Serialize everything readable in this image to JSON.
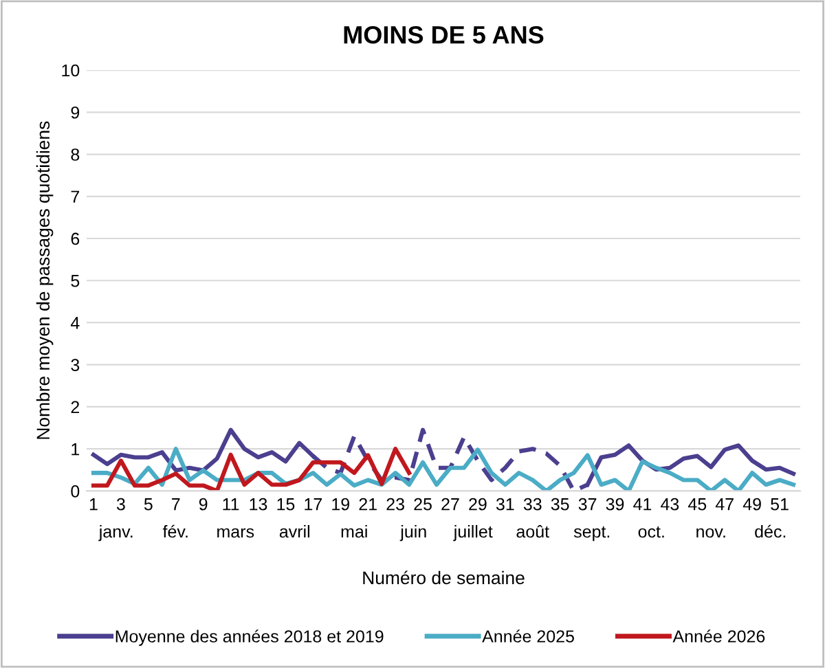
{
  "chart_data": {
    "type": "line",
    "title": "MOINS DE 5 ANS",
    "xlabel": "Numéro de semaine",
    "ylabel": "Nombre moyen de passages quotidiens",
    "x": [
      1,
      2,
      3,
      4,
      5,
      6,
      7,
      8,
      9,
      10,
      11,
      12,
      13,
      14,
      15,
      16,
      17,
      18,
      19,
      20,
      21,
      22,
      23,
      24,
      25,
      26,
      27,
      28,
      29,
      30,
      31,
      32,
      33,
      34,
      35,
      36,
      37,
      38,
      39,
      40,
      41,
      42,
      43,
      44,
      45,
      46,
      47,
      48,
      49,
      50,
      51,
      52
    ],
    "xlim": [
      0.5,
      52.5
    ],
    "xticks": [
      1,
      3,
      5,
      7,
      9,
      11,
      13,
      15,
      17,
      19,
      21,
      23,
      25,
      27,
      29,
      31,
      33,
      35,
      37,
      39,
      41,
      43,
      45,
      47,
      49,
      51
    ],
    "ylim": [
      0,
      10
    ],
    "yticks": [
      0,
      1,
      2,
      3,
      4,
      5,
      6,
      7,
      8,
      9,
      10
    ],
    "grid": "y",
    "legend": "bottom",
    "marker": "none",
    "series": [
      {
        "name": "Moyenne des années 2018 et 2019",
        "color": "#4b3f8f",
        "line_style": "solid",
        "values": [
          0.86,
          0.64,
          0.86,
          0.8,
          0.8,
          0.92,
          0.49,
          0.55,
          0.49,
          0.77,
          1.45,
          1.0,
          0.8,
          0.92,
          0.7,
          1.14,
          0.83,
          null,
          null,
          null,
          null,
          null,
          null,
          null,
          null,
          null,
          null,
          null,
          null,
          null,
          null,
          null,
          null,
          null,
          null,
          null,
          0.15,
          0.8,
          0.86,
          1.08,
          0.72,
          0.51,
          0.55,
          0.77,
          0.83,
          0.57,
          0.98,
          1.08,
          0.72,
          0.51,
          0.55,
          0.41
        ]
      },
      {
        "color": "#4b3f8f",
        "line_style": "dashed",
        "values": [
          null,
          null,
          null,
          null,
          null,
          null,
          null,
          null,
          null,
          null,
          null,
          null,
          null,
          null,
          null,
          null,
          0.83,
          0.55,
          0.43,
          1.3,
          0.72,
          0.26,
          0.32,
          0.26,
          1.45,
          0.55,
          0.55,
          1.28,
          0.72,
          0.26,
          0.55,
          0.94,
          1.0,
          0.89,
          0.6,
          0,
          0.15,
          null,
          null,
          null,
          null,
          null,
          null,
          null,
          null,
          null,
          null,
          null,
          null,
          null,
          null,
          null
        ]
      },
      {
        "name": "Année 2025",
        "color": "#4bacc6",
        "line_style": "solid",
        "values": [
          0.43,
          0.43,
          0.32,
          0.17,
          0.55,
          0.15,
          1.0,
          0.26,
          0.49,
          0.26,
          0.26,
          0.26,
          0.43,
          0.43,
          0.17,
          0.26,
          0.43,
          0.15,
          0.4,
          0.13,
          0.26,
          0.15,
          0.43,
          0.15,
          0.68,
          0.15,
          0.55,
          0.55,
          0.98,
          0.43,
          0.15,
          0.43,
          0.26,
          0,
          0.26,
          0.43,
          0.85,
          0.15,
          0.26,
          0,
          0.7,
          0.55,
          0.43,
          0.26,
          0.26,
          0,
          0.26,
          0,
          0.43,
          0.15,
          0.26,
          0.15
        ]
      },
      {
        "name": "Année 2026",
        "color": "#c0181e",
        "line_style": "solid",
        "values": [
          0.13,
          0.13,
          0.72,
          0.13,
          0.13,
          0.26,
          0.41,
          0.13,
          0.13,
          0,
          0.86,
          0.15,
          0.43,
          0.15,
          0.15,
          0.26,
          0.68,
          0.68,
          0.68,
          0.43,
          0.85,
          0.17,
          1.0,
          0.43,
          null,
          null,
          null,
          null,
          null,
          null,
          null,
          null,
          null,
          null,
          null,
          null,
          null,
          null,
          null,
          null,
          null,
          null,
          null,
          null,
          null,
          null,
          null,
          null,
          null,
          null,
          null,
          null
        ]
      }
    ],
    "annotations": [
      "janv.",
      "fév.",
      "mars",
      "avril",
      "mai",
      "juin",
      "juillet",
      "août",
      "sept.",
      "oct.",
      "nov.",
      "déc."
    ]
  }
}
